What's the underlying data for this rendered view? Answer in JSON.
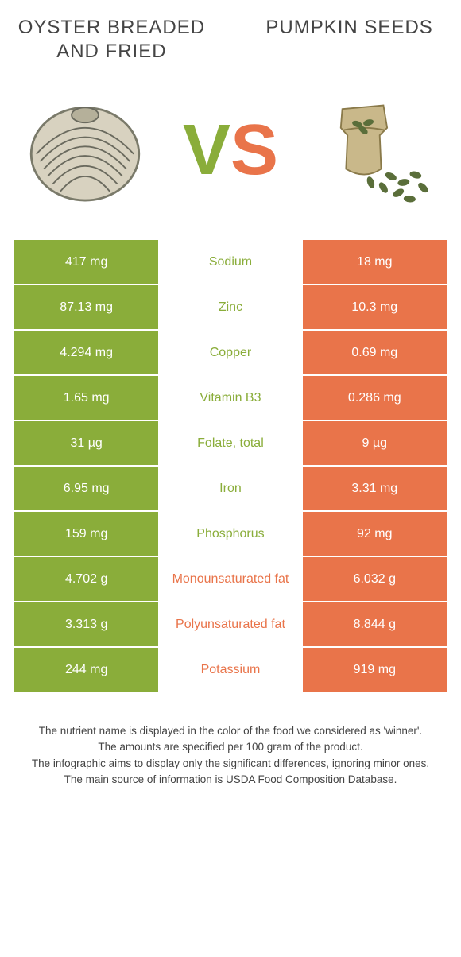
{
  "header": {
    "left": "OYSTER BREADED AND FRIED",
    "right": "PUMPKIN SEEDS"
  },
  "vs": {
    "v": "V",
    "s": "S"
  },
  "colors": {
    "left": "#8aad3a",
    "right": "#e9744a",
    "mid_bg": "#ffffff"
  },
  "rows": [
    {
      "left": "417 mg",
      "mid": "Sodium",
      "right": "18 mg",
      "mid_color": "#8aad3a"
    },
    {
      "left": "87.13 mg",
      "mid": "Zinc",
      "right": "10.3 mg",
      "mid_color": "#8aad3a"
    },
    {
      "left": "4.294 mg",
      "mid": "Copper",
      "right": "0.69 mg",
      "mid_color": "#8aad3a"
    },
    {
      "left": "1.65 mg",
      "mid": "Vitamin B3",
      "right": "0.286 mg",
      "mid_color": "#8aad3a"
    },
    {
      "left": "31 µg",
      "mid": "Folate, total",
      "right": "9 µg",
      "mid_color": "#8aad3a"
    },
    {
      "left": "6.95 mg",
      "mid": "Iron",
      "right": "3.31 mg",
      "mid_color": "#8aad3a"
    },
    {
      "left": "159 mg",
      "mid": "Phosphorus",
      "right": "92 mg",
      "mid_color": "#8aad3a"
    },
    {
      "left": "4.702 g",
      "mid": "Monounsaturated fat",
      "right": "6.032 g",
      "mid_color": "#e9744a"
    },
    {
      "left": "3.313 g",
      "mid": "Polyunsaturated fat",
      "right": "8.844 g",
      "mid_color": "#e9744a"
    },
    {
      "left": "244 mg",
      "mid": "Potassium",
      "right": "919 mg",
      "mid_color": "#e9744a"
    }
  ],
  "footer": {
    "l1": "The nutrient name is displayed in the color of the food we considered as 'winner'.",
    "l2": "The amounts are specified per 100 gram of the product.",
    "l3": "The infographic aims to display only the significant differences, ignoring minor ones.",
    "l4": "The main source of information is USDA Food Composition Database."
  }
}
